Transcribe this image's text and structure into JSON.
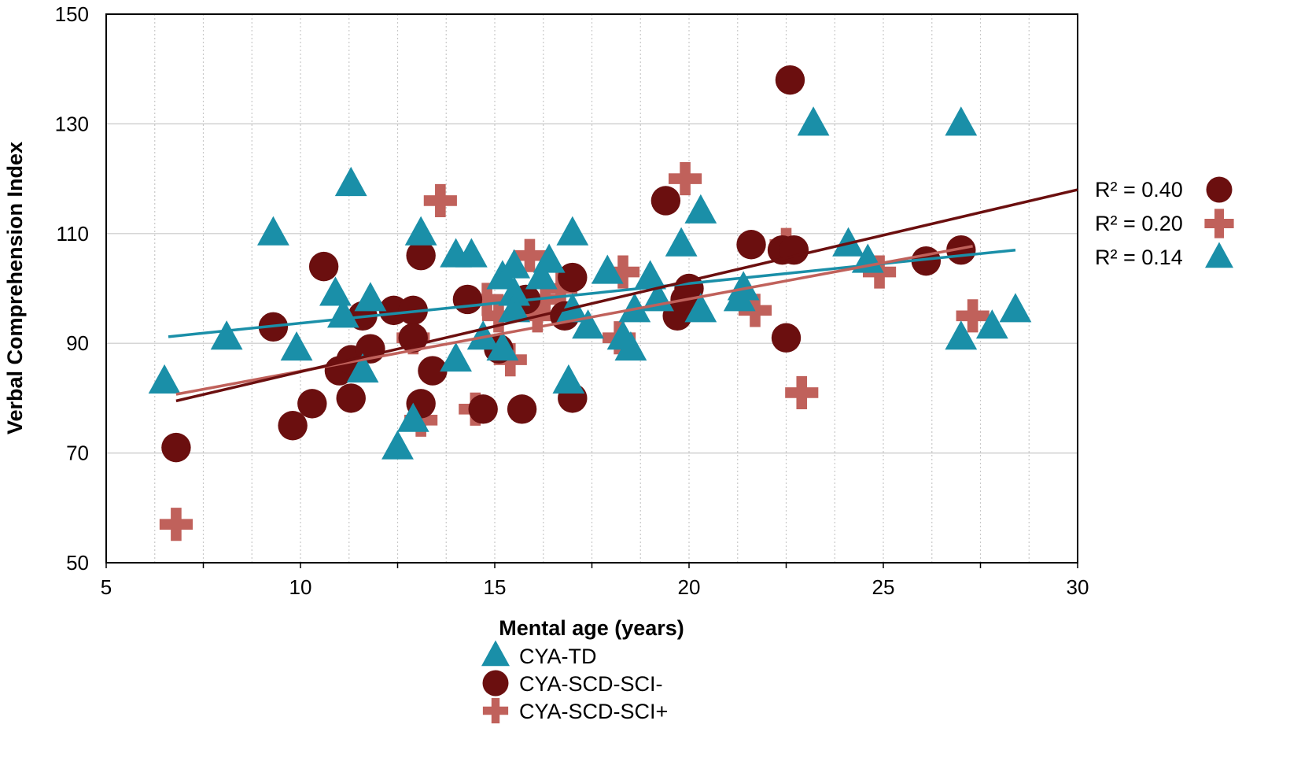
{
  "chart_data": {
    "type": "scatter",
    "xlabel": "Mental age (years)",
    "ylabel": "Verbal Comprehension Index",
    "xlim": [
      5,
      30
    ],
    "ylim": [
      50,
      150
    ],
    "x_ticks": [
      "5",
      "10",
      "15",
      "20",
      "25",
      "30"
    ],
    "y_ticks": [
      "50",
      "70",
      "90",
      "110",
      "130",
      "150"
    ],
    "grid": "major horizontal solid; minor vertical dotted every 1.25 years",
    "legend_position": "bottom",
    "r2_legend_position": "right",
    "series": [
      {
        "name": "CYA-TD",
        "marker": "triangle",
        "color": "#1a8fa8",
        "r2_label": "R² = 0.14",
        "trendline": {
          "x": [
            6.6,
            28.4
          ],
          "y": [
            91.2,
            107.0
          ]
        },
        "points": [
          [
            6.5,
            83
          ],
          [
            8.1,
            91
          ],
          [
            9.3,
            110
          ],
          [
            9.9,
            89
          ],
          [
            10.9,
            99
          ],
          [
            11.1,
            95
          ],
          [
            11.3,
            119
          ],
          [
            11.6,
            85
          ],
          [
            11.8,
            98
          ],
          [
            12.5,
            71
          ],
          [
            12.9,
            76
          ],
          [
            13.1,
            110
          ],
          [
            14.0,
            106
          ],
          [
            14.0,
            87
          ],
          [
            14.4,
            106
          ],
          [
            14.7,
            91
          ],
          [
            15.2,
            102
          ],
          [
            15.2,
            89
          ],
          [
            15.5,
            104
          ],
          [
            15.5,
            99
          ],
          [
            15.5,
            96
          ],
          [
            16.2,
            102
          ],
          [
            16.4,
            105
          ],
          [
            16.9,
            83
          ],
          [
            17.0,
            110
          ],
          [
            17.0,
            96
          ],
          [
            17.4,
            93
          ],
          [
            17.9,
            103
          ],
          [
            18.3,
            91
          ],
          [
            18.6,
            96
          ],
          [
            18.5,
            89
          ],
          [
            19.0,
            102
          ],
          [
            19.2,
            98
          ],
          [
            19.8,
            108
          ],
          [
            20.3,
            114
          ],
          [
            20.3,
            96
          ],
          [
            21.3,
            98
          ],
          [
            21.4,
            100
          ],
          [
            23.2,
            130
          ],
          [
            24.1,
            108
          ],
          [
            24.6,
            105
          ],
          [
            27.0,
            91
          ],
          [
            27.0,
            130
          ],
          [
            27.8,
            93
          ],
          [
            28.4,
            96
          ]
        ]
      },
      {
        "name": "CYA-SCD-SCI-",
        "marker": "circle",
        "color": "#6b0f0f",
        "r2_label": "R² = 0.40",
        "trendline": {
          "x": [
            6.8,
            30.0
          ],
          "y": [
            79.5,
            118.0
          ]
        },
        "points": [
          [
            6.8,
            71
          ],
          [
            9.3,
            93
          ],
          [
            9.8,
            75
          ],
          [
            10.3,
            79
          ],
          [
            10.6,
            104
          ],
          [
            11.0,
            85
          ],
          [
            11.3,
            87
          ],
          [
            11.3,
            80
          ],
          [
            11.6,
            95
          ],
          [
            11.8,
            89
          ],
          [
            12.4,
            96
          ],
          [
            12.9,
            96
          ],
          [
            12.9,
            91
          ],
          [
            13.1,
            106
          ],
          [
            13.1,
            79
          ],
          [
            13.4,
            85
          ],
          [
            14.3,
            98
          ],
          [
            14.7,
            78
          ],
          [
            15.1,
            89
          ],
          [
            15.7,
            78
          ],
          [
            15.8,
            98
          ],
          [
            16.8,
            95
          ],
          [
            17.0,
            102
          ],
          [
            17.0,
            80
          ],
          [
            19.4,
            116
          ],
          [
            19.7,
            95
          ],
          [
            19.9,
            98
          ],
          [
            20.0,
            100
          ],
          [
            21.6,
            108
          ],
          [
            22.4,
            107
          ],
          [
            22.5,
            91
          ],
          [
            22.6,
            138
          ],
          [
            22.7,
            107
          ],
          [
            26.1,
            105
          ],
          [
            27.0,
            107
          ]
        ]
      },
      {
        "name": "CYA-SCD-SCI+",
        "marker": "plus",
        "color": "#c0615b",
        "r2_label": "R² = 0.20",
        "trendline": {
          "x": [
            6.8,
            27.3
          ],
          "y": [
            80.7,
            107.7
          ]
        },
        "points": [
          [
            6.8,
            57
          ],
          [
            12.9,
            91
          ],
          [
            13.1,
            76
          ],
          [
            13.6,
            116
          ],
          [
            14.5,
            78
          ],
          [
            14.8,
            98
          ],
          [
            15.1,
            95
          ],
          [
            15.4,
            87
          ],
          [
            15.9,
            106
          ],
          [
            16.1,
            95
          ],
          [
            16.3,
            98
          ],
          [
            16.7,
            100
          ],
          [
            18.3,
            103
          ],
          [
            18.2,
            91
          ],
          [
            19.9,
            120
          ],
          [
            21.7,
            96
          ],
          [
            22.5,
            108
          ],
          [
            22.9,
            81
          ],
          [
            24.9,
            103
          ],
          [
            27.3,
            95
          ]
        ]
      }
    ],
    "legend": [
      "CYA-TD",
      "CYA-SCD-SCI-",
      "CYA-SCD-SCI+"
    ],
    "r2_legend": [
      {
        "label": "R² = 0.40",
        "series": "CYA-SCD-SCI-"
      },
      {
        "label": "R² = 0.20",
        "series": "CYA-SCD-SCI+"
      },
      {
        "label": "R² = 0.14",
        "series": "CYA-TD"
      }
    ]
  }
}
